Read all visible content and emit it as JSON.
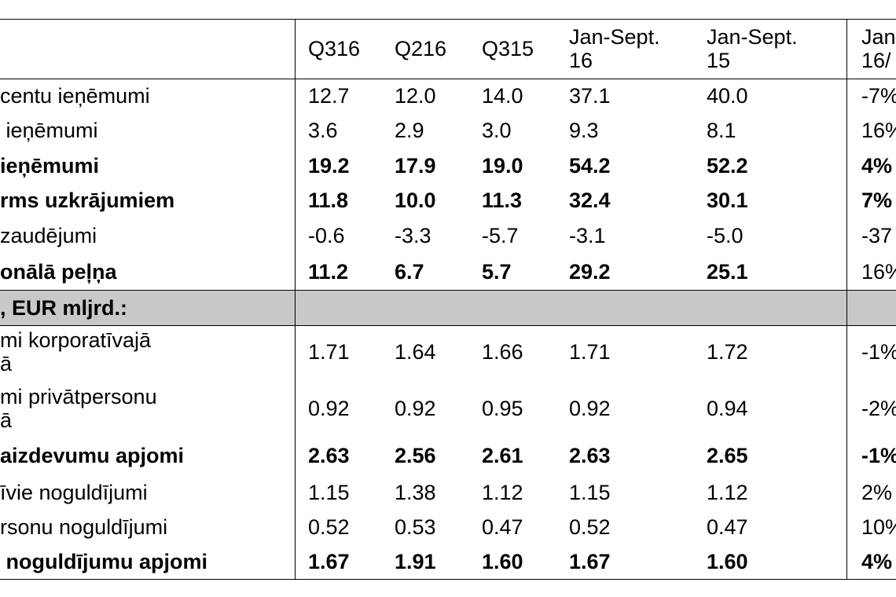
{
  "header": {
    "columns": [
      "Q316",
      "Q216",
      "Q315",
      "Jan-Sept.\n16",
      "Jan-Sept.\n15",
      "Jan\n16/"
    ]
  },
  "rows": [
    {
      "label": "centu ieņēmumi",
      "values": [
        "12.7",
        "12.0",
        "14.0",
        "37.1",
        "40.0",
        "-7%"
      ],
      "bold": false
    },
    {
      "label": " ieņēmumi",
      "values": [
        "3.6",
        "2.9",
        "3.0",
        "9.3",
        "8.1",
        "16%"
      ],
      "bold": false
    },
    {
      "label": "ieņēmumi",
      "values": [
        "19.2",
        "17.9",
        "19.0",
        "54.2",
        "52.2",
        "4%"
      ],
      "bold": true
    },
    {
      "label": "rms uzkrājumiem",
      "values": [
        "11.8",
        "10.0",
        "11.3",
        "32.4",
        "30.1",
        "7%"
      ],
      "bold": true
    },
    {
      "label": "zaudējumi",
      "values": [
        "-0.6",
        "-3.3",
        "-5.7",
        "-3.1",
        "-5.0",
        "-37"
      ],
      "bold": false
    },
    {
      "label": "onālā peļņa",
      "values": [
        "11.2",
        "6.7",
        "5.7",
        "29.2",
        "25.1",
        "16%"
      ],
      "bold": true,
      "last_normal": true
    }
  ],
  "section": {
    "label": ", EUR mljrd.:"
  },
  "rows2": [
    {
      "label": "mi korporatīvajā\nā",
      "values": [
        "1.71",
        "1.64",
        "1.66",
        "1.71",
        "1.72",
        "-1%"
      ],
      "bold": false
    },
    {
      "label": "mi privātpersonu\nā",
      "values": [
        "0.92",
        "0.92",
        "0.95",
        "0.92",
        "0.94",
        "-2%"
      ],
      "bold": false
    },
    {
      "label": "aizdevumu apjomi",
      "values": [
        "2.63",
        "2.56",
        "2.61",
        "2.63",
        "2.65",
        "-1%"
      ],
      "bold": true
    },
    {
      "label": "īvie noguldījumi",
      "values": [
        "1.15",
        "1.38",
        "1.12",
        "1.15",
        "1.12",
        "2%"
      ],
      "bold": false
    },
    {
      "label": "rsonu noguldījumi",
      "values": [
        "0.52",
        "0.53",
        "0.47",
        "0.52",
        "0.47",
        "10%"
      ],
      "bold": false
    },
    {
      "label": " noguldījumu apjomi",
      "values": [
        "1.67",
        "1.91",
        "1.60",
        "1.67",
        "1.60",
        "4%"
      ],
      "bold": true
    }
  ]
}
